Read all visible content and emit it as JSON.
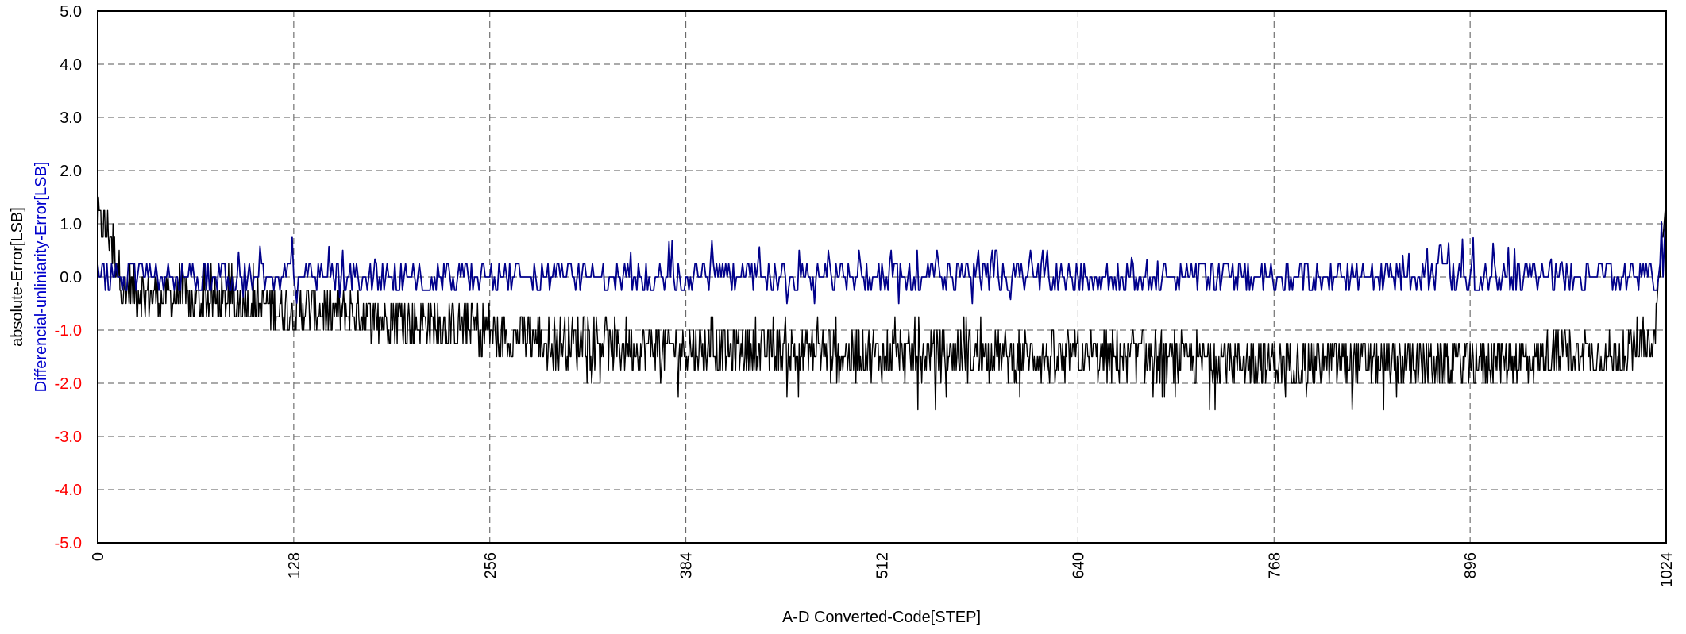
{
  "chart_data": {
    "type": "line",
    "title": "",
    "xlabel": "A-D Converted-Code[STEP]",
    "ylabel_primary": "absolute-Error[LSB]",
    "ylabel_secondary": "Differencial-unliniarity-Error[LSB]",
    "xlim": [
      0,
      1024
    ],
    "ylim": [
      -5.0,
      5.0
    ],
    "x_ticks": [
      "0",
      "128",
      "256",
      "384",
      "512",
      "640",
      "768",
      "896",
      "1024"
    ],
    "y_ticks": [
      "5.0",
      "4.0",
      "3.0",
      "2.0",
      "1.0",
      "0.0",
      "-1.0",
      "-2.0",
      "-3.0",
      "-4.0",
      "-5.0"
    ],
    "grid": true,
    "legend": "none",
    "series": [
      {
        "color": "#000000",
        "style": "dense oscillating",
        "x": [
          0,
          8,
          16,
          32,
          64,
          96,
          128,
          160,
          192,
          224,
          256,
          288,
          320,
          352,
          384,
          416,
          448,
          480,
          512,
          544,
          576,
          608,
          640,
          672,
          704,
          736,
          768,
          800,
          832,
          864,
          896,
          928,
          960,
          992,
          1016,
          1024
        ],
        "values": [
          1.0,
          0.8,
          -0.2,
          -0.3,
          -0.45,
          -0.5,
          -0.6,
          -0.65,
          -0.75,
          -0.9,
          -1.0,
          -1.2,
          -1.25,
          -1.3,
          -1.35,
          -1.35,
          -1.4,
          -1.4,
          -1.45,
          -1.45,
          -1.45,
          -1.5,
          -1.5,
          -1.5,
          -1.55,
          -1.55,
          -1.6,
          -1.6,
          -1.6,
          -1.6,
          -1.6,
          -1.55,
          -1.5,
          -1.5,
          -1.3,
          1.5
        ],
        "upper": [
          1.5,
          1.5,
          0.25,
          0.5,
          0.25,
          0.25,
          0.25,
          -0.25,
          -0.5,
          -0.5,
          -0.5,
          -0.75,
          -0.75,
          -0.75,
          -0.75,
          -0.75,
          -0.75,
          -0.75,
          -0.75,
          -0.75,
          -0.75,
          -0.75,
          -1.0,
          -1.0,
          -1.0,
          -1.25,
          -1.25,
          -1.25,
          -1.25,
          -1.25,
          -1.25,
          -1.25,
          -1.0,
          -1.0,
          -0.75,
          1.5
        ],
        "lower": [
          0.5,
          0.5,
          -0.5,
          -0.75,
          -0.75,
          -0.75,
          -1.0,
          -1.0,
          -1.25,
          -1.5,
          -1.5,
          -1.75,
          -2.0,
          -2.0,
          -2.25,
          -2.0,
          -2.25,
          -2.0,
          -2.25,
          -2.5,
          -2.0,
          -2.25,
          -2.0,
          -2.0,
          -2.25,
          -2.5,
          -2.25,
          -2.25,
          -2.5,
          -2.0,
          -2.0,
          -2.0,
          -1.75,
          -1.75,
          -1.5,
          0.5
        ]
      },
      {
        "color": "#00008b",
        "style": "thin oscillating",
        "x": [
          0,
          8,
          16,
          64,
          128,
          192,
          256,
          320,
          384,
          448,
          512,
          576,
          640,
          704,
          768,
          832,
          896,
          960,
          1016,
          1024
        ],
        "values": [
          0.2,
          0.0,
          0.0,
          0.0,
          0.0,
          0.0,
          0.0,
          0.0,
          0.0,
          0.0,
          0.0,
          0.0,
          0.0,
          0.0,
          0.0,
          0.0,
          0.0,
          0.0,
          0.0,
          1.5
        ],
        "upper": [
          0.5,
          0.25,
          0.25,
          0.25,
          0.75,
          0.25,
          0.25,
          0.25,
          0.75,
          0.5,
          0.5,
          0.5,
          0.5,
          0.25,
          0.25,
          0.25,
          0.75,
          0.25,
          0.25,
          1.5
        ],
        "lower": [
          -0.25,
          -0.25,
          -0.25,
          -0.25,
          -0.5,
          -0.25,
          -0.25,
          -0.25,
          -0.25,
          -0.5,
          -0.5,
          -0.5,
          -0.25,
          -0.25,
          -0.25,
          -0.25,
          -0.25,
          -0.25,
          -0.25,
          0.0
        ]
      }
    ],
    "colors": {
      "axis": "#000000",
      "grid": "#555555",
      "tick_pos": "#000000",
      "tick_neg": "#ff0000",
      "ylabel_secondary": "#0000cc"
    }
  }
}
